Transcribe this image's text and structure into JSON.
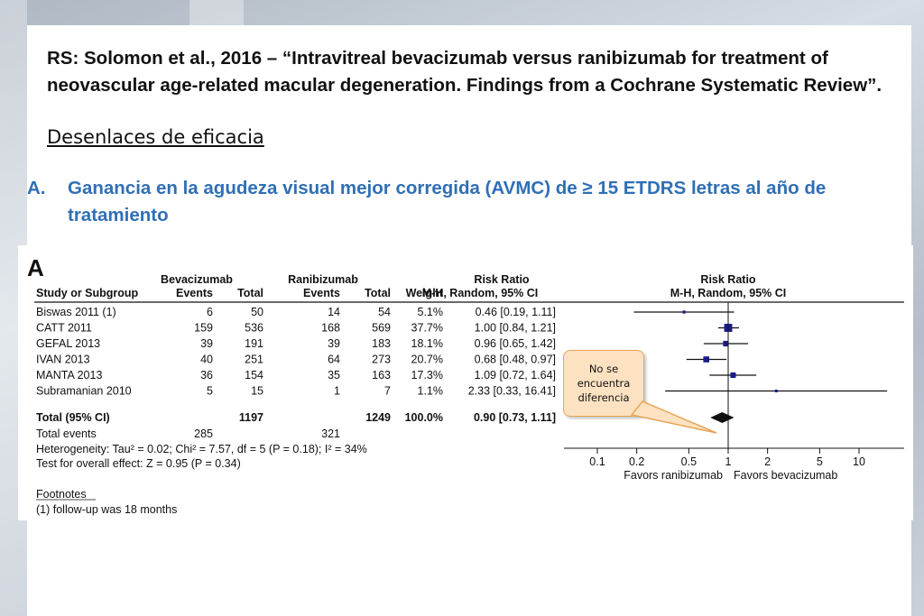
{
  "slide": {
    "title": "RS: Solomon et al., 2016 – “Intravitreal bevacizumab versus ranibizumab for treatment of neovascular age-related macular degeneration. Findings from a Cochrane Systematic Review”.",
    "subtitle": "Desenlaces de eficacia",
    "bullet_marker": "A.",
    "bullet_text": "Ganancia en la agudeza visual mejor corregida (AVMC) de ≥ 15 ETDRS letras al año de tratamiento",
    "callout": "No se encuentra diferencia",
    "accent_color": "#2f6fb5",
    "callout_color": "#fde2c2"
  },
  "chart_data": {
    "type": "forest",
    "panel_label": "A",
    "headers": {
      "group1": "Bevacizumab",
      "group2": "Ranibizumab",
      "study": "Study or Subgroup",
      "events": "Events",
      "total": "Total",
      "weight": "Weight",
      "effect": "Risk Ratio",
      "effect_method": "M-H, Random, 95% CI"
    },
    "studies": [
      {
        "name": "Biswas 2011 (1)",
        "e1": "6",
        "t1": "50",
        "e2": "14",
        "t2": "54",
        "weight": "5.1%",
        "ci_text": "0.46 [0.19, 1.11]",
        "rr": 0.46,
        "lo": 0.19,
        "hi": 1.11,
        "w": 5.1
      },
      {
        "name": "CATT 2011",
        "e1": "159",
        "t1": "536",
        "e2": "168",
        "t2": "569",
        "weight": "37.7%",
        "ci_text": "1.00 [0.84, 1.21]",
        "rr": 1.0,
        "lo": 0.84,
        "hi": 1.21,
        "w": 37.7
      },
      {
        "name": "GEFAL 2013",
        "e1": "39",
        "t1": "191",
        "e2": "39",
        "t2": "183",
        "weight": "18.1%",
        "ci_text": "0.96 [0.65, 1.42]",
        "rr": 0.96,
        "lo": 0.65,
        "hi": 1.42,
        "w": 18.1
      },
      {
        "name": "IVAN 2013",
        "e1": "40",
        "t1": "251",
        "e2": "64",
        "t2": "273",
        "weight": "20.7%",
        "ci_text": "0.68 [0.48, 0.97]",
        "rr": 0.68,
        "lo": 0.48,
        "hi": 0.97,
        "w": 20.7
      },
      {
        "name": "MANTA 2013",
        "e1": "36",
        "t1": "154",
        "e2": "35",
        "t2": "163",
        "weight": "17.3%",
        "ci_text": "1.09 [0.72, 1.64]",
        "rr": 1.09,
        "lo": 0.72,
        "hi": 1.64,
        "w": 17.3
      },
      {
        "name": "Subramanian 2010",
        "e1": "5",
        "t1": "15",
        "e2": "1",
        "t2": "7",
        "weight": "1.1%",
        "ci_text": "2.33 [0.33, 16.41]",
        "rr": 2.33,
        "lo": 0.33,
        "hi": 16.41,
        "w": 1.1
      }
    ],
    "total": {
      "name": "Total (95% CI)",
      "t1": "1197",
      "t2": "1249",
      "weight": "100.0%",
      "ci_text": "0.90 [0.73, 1.11]",
      "rr": 0.9,
      "lo": 0.73,
      "hi": 1.11
    },
    "total_events": {
      "label": "Total events",
      "e1": "285",
      "e2": "321"
    },
    "heterogeneity": "Heterogeneity: Tau² = 0.02; Chi² = 7.57, df = 5 (P = 0.18); I² = 34%",
    "overall_effect": "Test for overall effect: Z = 0.95 (P = 0.34)",
    "footnotes_title": "Footnotes",
    "footnote": "(1) follow-up was 18 months",
    "x_scale": "log",
    "xlim": [
      0.05,
      20
    ],
    "ticks": [
      0.1,
      0.2,
      0.5,
      1,
      2,
      5,
      10
    ],
    "tick_labels": [
      "0.1",
      "0.2",
      "0.5",
      "1",
      "2",
      "5",
      "10"
    ],
    "favors_left": "Favors ranibizumab",
    "favors_right": "Favors bevacizumab",
    "marker_color": "#1a1a8c"
  }
}
